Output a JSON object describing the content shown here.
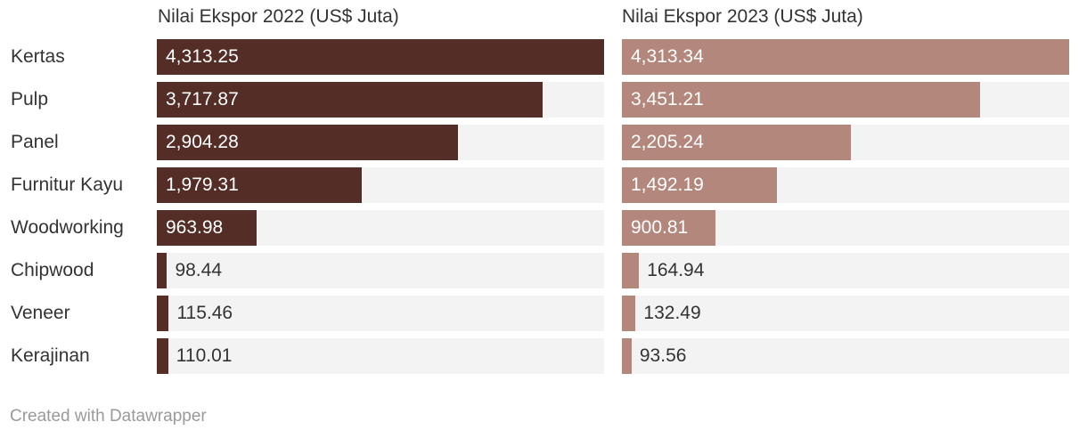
{
  "chart_data": {
    "type": "bar",
    "orientation": "horizontal",
    "categories": [
      "Kertas",
      "Pulp",
      "Panel",
      "Furnitur Kayu",
      "Woodworking",
      "Chipwood",
      "Veneer",
      "Kerajinan"
    ],
    "series": [
      {
        "name": "Nilai Ekspor 2022 (US$ Juta)",
        "values": [
          4313.25,
          3717.87,
          2904.28,
          1979.31,
          963.98,
          98.44,
          115.46,
          110.01
        ],
        "labels": [
          "4,313.25",
          "3,717.87",
          "2,904.28",
          "1,979.31",
          "963.98",
          "98.44",
          "115.46",
          "110.01"
        ],
        "color": "#542d27"
      },
      {
        "name": "Nilai Ekspor 2023 (US$ Juta)",
        "values": [
          4313.34,
          3451.21,
          2205.24,
          1492.19,
          900.81,
          164.94,
          132.49,
          93.56
        ],
        "labels": [
          "4,313.34",
          "3,451.21",
          "2,205.24",
          "1,492.19",
          "900.81",
          "164.94",
          "132.49",
          "93.56"
        ],
        "color": "#b4877c"
      }
    ],
    "xlim": [
      0,
      4313.34
    ],
    "track_color": "#f3f3f3",
    "label_color_inside": "#ffffff",
    "label_color_outside": "#333333"
  },
  "footer": {
    "credit": "Created with Datawrapper"
  }
}
